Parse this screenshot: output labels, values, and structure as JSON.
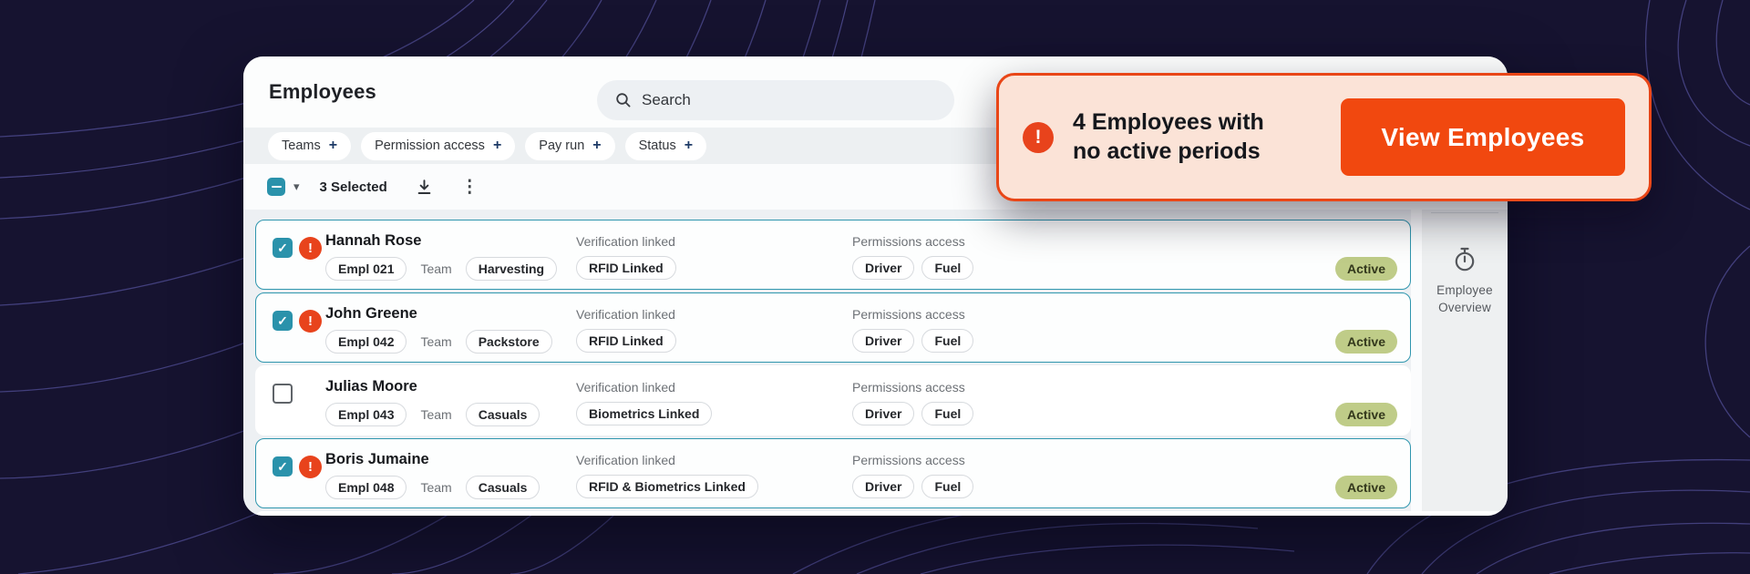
{
  "page": {
    "title": "Employees"
  },
  "search": {
    "placeholder": "Search"
  },
  "filters": [
    {
      "label": "Teams"
    },
    {
      "label": "Permission access"
    },
    {
      "label": "Pay run"
    },
    {
      "label": "Status"
    }
  ],
  "toolbar": {
    "selected_label": "3 Selected"
  },
  "row_labels": {
    "team": "Team",
    "verification": "Verification linked",
    "permissions": "Permissions access"
  },
  "employees": [
    {
      "name": "Hannah Rose",
      "empl": "Empl 021",
      "team": "Harvesting",
      "verification": "RFID Linked",
      "permissions": [
        "Driver",
        "Fuel"
      ],
      "status": "Active",
      "selected": true,
      "warning": true
    },
    {
      "name": "John Greene",
      "empl": "Empl 042",
      "team": "Packstore",
      "verification": "RFID Linked",
      "permissions": [
        "Driver",
        "Fuel"
      ],
      "status": "Active",
      "selected": true,
      "warning": true
    },
    {
      "name": "Julias Moore",
      "empl": "Empl 043",
      "team": "Casuals",
      "verification": "Biometrics Linked",
      "permissions": [
        "Driver",
        "Fuel"
      ],
      "status": "Active",
      "selected": false,
      "warning": false
    },
    {
      "name": "Boris Jumaine",
      "empl": "Empl 048",
      "team": "Casuals",
      "verification": "RFID & Biometrics Linked",
      "permissions": [
        "Driver",
        "Fuel"
      ],
      "status": "Active",
      "selected": true,
      "warning": true
    }
  ],
  "callout": {
    "line1": "4 Employees with",
    "line2": "no active periods",
    "button_label": "View Employees"
  },
  "sidebar": {
    "line1": "Employee",
    "line2": "Overview"
  },
  "icons": {
    "plus": "+",
    "check": "✓",
    "warning": "!",
    "caret_down": "▾",
    "kebab": "⋮"
  },
  "colors": {
    "background": "#161330",
    "contour_line": "#4a478a",
    "accent_teal": "#2a92ab",
    "warning_red": "#e8431c",
    "callout_bg": "#fbe3d7",
    "callout_border": "#e94617",
    "button_orange": "#f1480f",
    "active_badge": "#bfcc88",
    "list_bg": "#edf0f3"
  }
}
